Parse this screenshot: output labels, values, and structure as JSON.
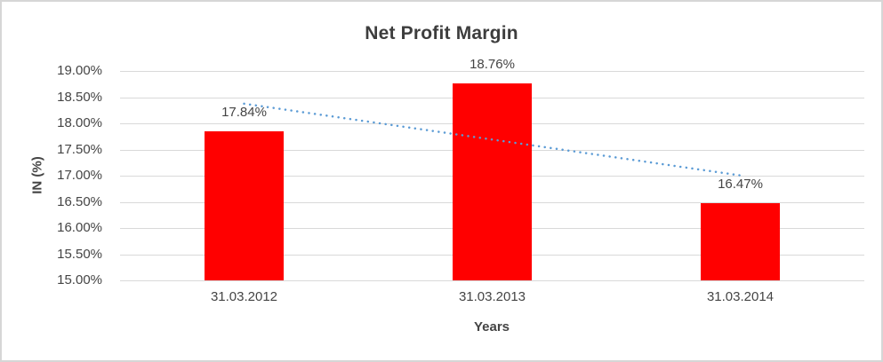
{
  "chart_data": {
    "type": "bar",
    "title": "Net Profit Margin",
    "xlabel": "Years",
    "ylabel": "IN (%)",
    "categories": [
      "31.03.2012",
      "31.03.2013",
      "31.03.2014"
    ],
    "values": [
      17.84,
      18.76,
      16.47
    ],
    "data_labels": [
      "17.84%",
      "18.76%",
      "16.47%"
    ],
    "yticks": [
      "19.00%",
      "18.50%",
      "18.00%",
      "17.50%",
      "17.00%",
      "16.50%",
      "16.00%",
      "15.50%",
      "15.00%"
    ],
    "ylim": [
      15.0,
      19.0
    ],
    "ytick_step": 0.5,
    "grid": true,
    "legend": "none",
    "trendline": {
      "type": "linear",
      "style": "dotted"
    },
    "colors": {
      "bar": "#FF0000",
      "trendline": "#5B9BD5",
      "gridline": "#D9D9D9",
      "axis_text": "#444444",
      "title_text": "#3D3D3D",
      "border": "#D6D6D6",
      "background": "#FFFFFF"
    }
  }
}
